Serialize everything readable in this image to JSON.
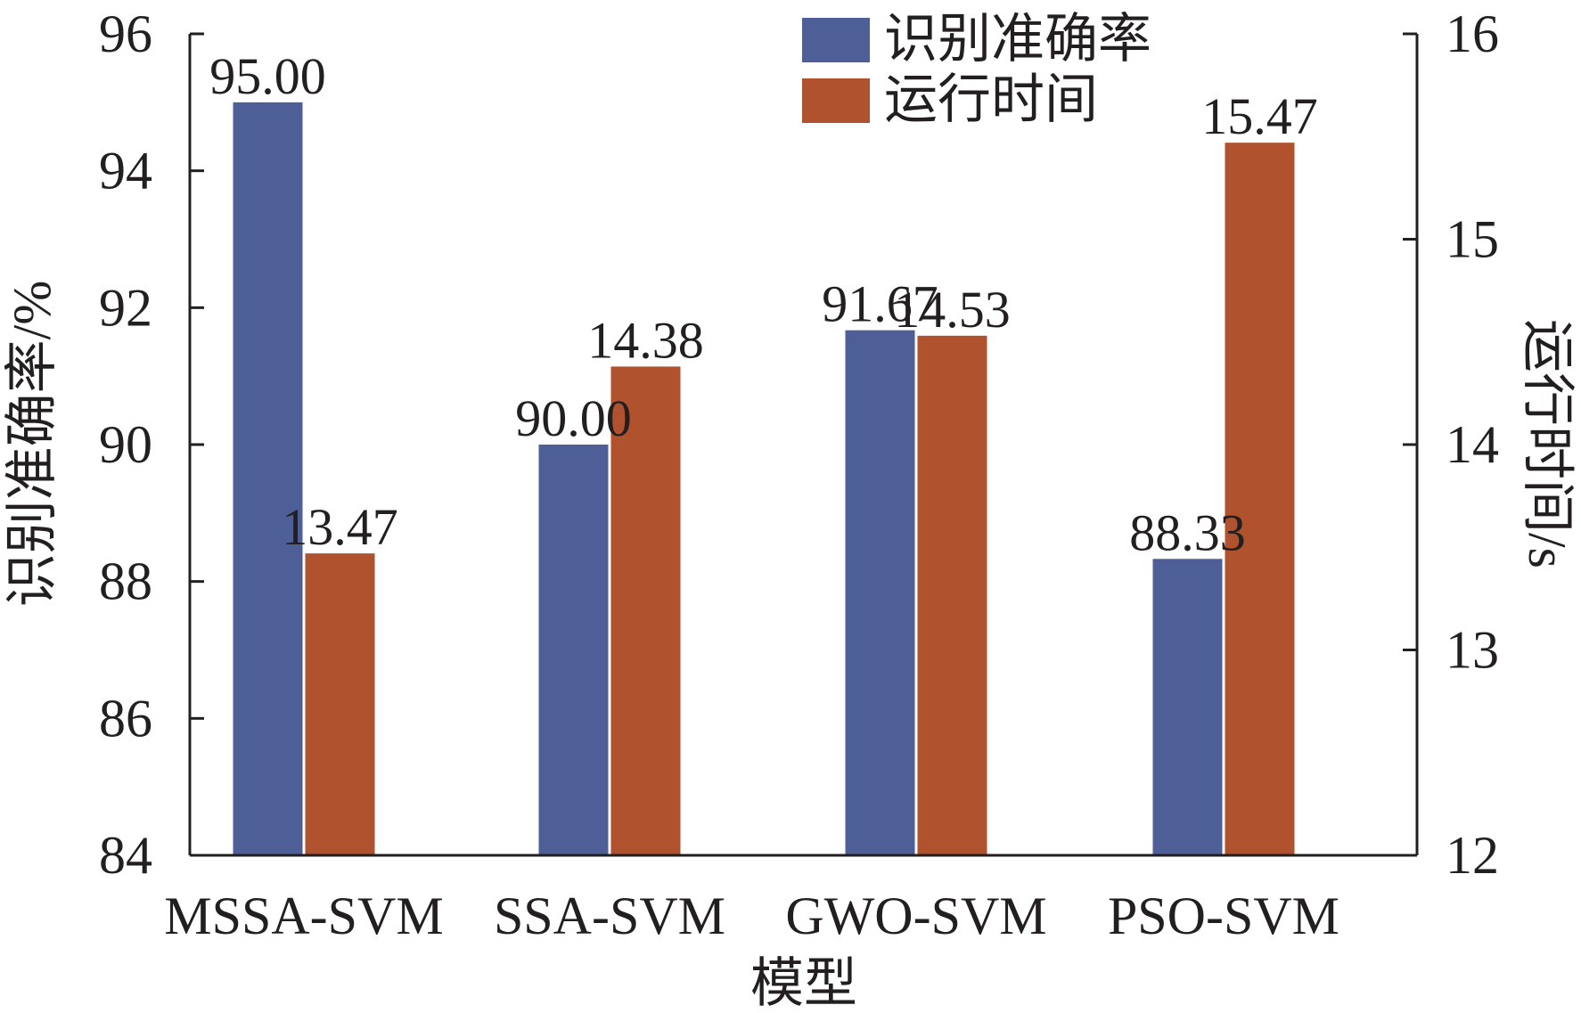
{
  "chart_data": {
    "type": "bar",
    "categories": [
      "MSSA-SVM",
      "SSA-SVM",
      "GWO-SVM",
      "PSO-SVM"
    ],
    "xlabel": "模型",
    "series": [
      {
        "name": "识别准确率",
        "axis": "left",
        "color": "#4e5f97",
        "values": [
          95.0,
          90.0,
          91.67,
          88.33
        ],
        "labels": [
          "95.00",
          "90.00",
          "91.67",
          "88.33"
        ]
      },
      {
        "name": "运行时间",
        "axis": "right",
        "color": "#b0522d",
        "values": [
          13.47,
          14.38,
          14.53,
          15.47
        ],
        "labels": [
          "13.47",
          "14.38",
          "14.53",
          "15.47"
        ]
      }
    ],
    "y_left": {
      "label": "识别准确率/%",
      "ylim": [
        84,
        96
      ],
      "ticks": [
        84,
        86,
        88,
        90,
        92,
        94,
        96
      ]
    },
    "y_right": {
      "label": "运行时间/s",
      "ylim": [
        12,
        16
      ],
      "ticks": [
        12,
        13,
        14,
        15,
        16
      ]
    },
    "legend_position": "top-right",
    "grid": false
  }
}
